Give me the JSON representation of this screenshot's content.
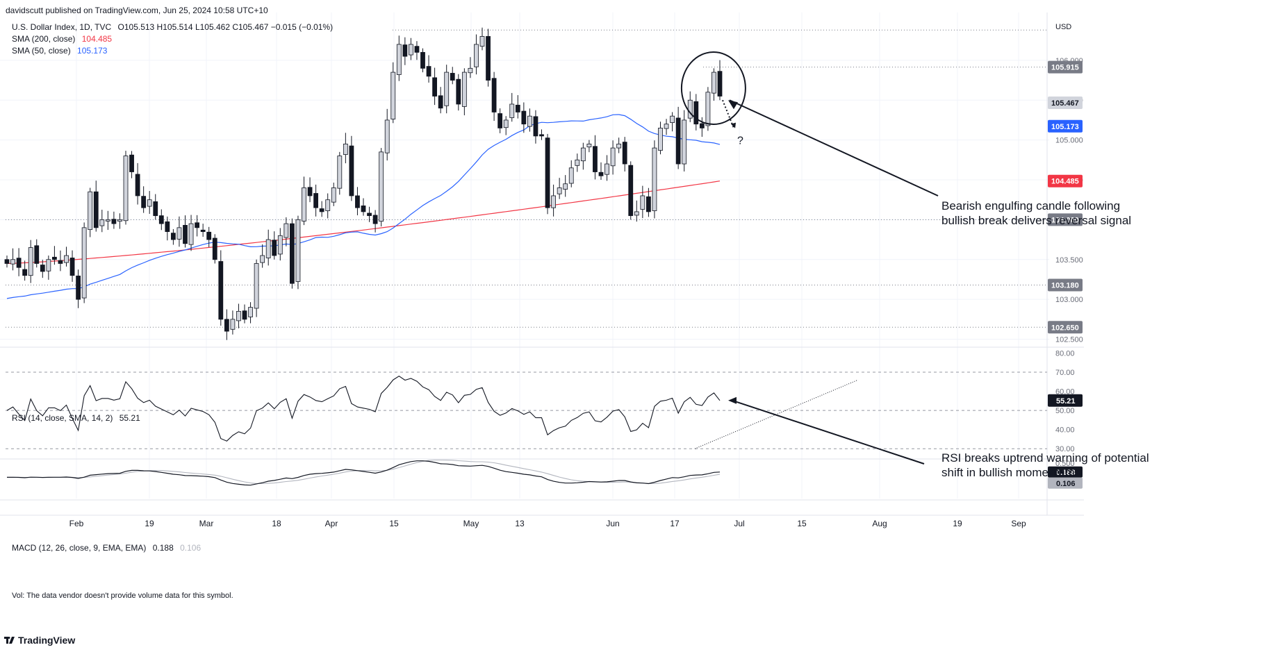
{
  "header": {
    "published": "davidscutt published on TradingView.com, Jun 25, 2024 10:58 UTC+10"
  },
  "legend": {
    "symbol": "U.S. Dollar Index, 1D, TVC",
    "ohlc": "O105.513 H105.514 L105.462 C105.467 −0.015 (−0.01%)",
    "sma200_label": "SMA (200, close)",
    "sma200_value": "104.485",
    "sma50_label": "SMA (50, close)",
    "sma50_value": "105.173",
    "rsi_label": "RSI (14, close, SMA, 14, 2)",
    "rsi_value": "55.21",
    "macd_label": "MACD (12, 26, close, 9, EMA, EMA)",
    "macd_value": "0.188",
    "macd_signal_value": "0.106"
  },
  "vol_note": "Vol: The data vendor doesn't provide volume data for this symbol.",
  "brand": "TradingView",
  "colors": {
    "sma200": "#f23645",
    "sma50": "#2962ff",
    "up_fill": "#d1d4dc",
    "down_fill": "#131722",
    "text": "#131722",
    "grid": "#f0f3fa"
  },
  "annotations": {
    "candle_note_line1": "Bearish engulfing candle following",
    "candle_note_line2": "bullish break delivers reversal signal",
    "rsi_note_line1": "RSI breaks uptrend warning of potential",
    "rsi_note_line2": "shift in bullish momentum",
    "question": "?"
  },
  "chart_data": {
    "type": "candlestick",
    "currency": "USD",
    "x_axis_labels": [
      "Feb",
      "19",
      "Mar",
      "18",
      "Apr",
      "15",
      "May",
      "13",
      "Jun",
      "17",
      "Jul",
      "15",
      "Aug",
      "19",
      "Sep"
    ],
    "price_axis": {
      "ticks": [
        "106.000",
        "105.500",
        "105.000",
        "104.500",
        "104.000",
        "103.500",
        "103.000",
        "102.500"
      ],
      "ylim": [
        102.4,
        106.6
      ]
    },
    "price_badges": [
      {
        "value": "105.915",
        "style": "grey"
      },
      {
        "value": "105.467",
        "style": "light"
      },
      {
        "value": "105.173",
        "style": "blue"
      },
      {
        "value": "104.485",
        "style": "red"
      },
      {
        "value": "104.000",
        "style": "grey"
      },
      {
        "value": "103.180",
        "style": "grey"
      },
      {
        "value": "102.650",
        "style": "grey"
      }
    ],
    "horizontal_levels": [
      106.38,
      105.915,
      104.0,
      103.18,
      102.65
    ],
    "closes": [
      103.45,
      103.5,
      103.4,
      103.3,
      103.65,
      103.45,
      103.35,
      103.5,
      103.5,
      103.45,
      103.55,
      103.3,
      103.0,
      103.9,
      104.35,
      103.9,
      104.0,
      104.0,
      103.95,
      104.0,
      104.8,
      104.6,
      104.3,
      104.15,
      104.25,
      104.05,
      103.95,
      103.85,
      103.75,
      103.9,
      103.7,
      103.95,
      103.9,
      103.85,
      103.75,
      103.5,
      102.75,
      102.6,
      102.75,
      102.85,
      102.75,
      102.9,
      103.45,
      103.55,
      103.75,
      103.55,
      103.8,
      103.95,
      103.2,
      104.0,
      104.4,
      104.3,
      104.15,
      104.1,
      104.25,
      104.4,
      104.8,
      104.95,
      104.3,
      104.15,
      104.1,
      104.05,
      103.95,
      104.85,
      105.25,
      105.85,
      106.2,
      106.05,
      106.2,
      106.1,
      105.9,
      105.8,
      105.55,
      105.4,
      105.85,
      105.75,
      105.45,
      105.85,
      105.9,
      106.2,
      106.3,
      105.75,
      105.35,
      105.15,
      105.25,
      105.45,
      105.35,
      105.2,
      105.3,
      105.05,
      105.05,
      104.15,
      104.3,
      104.4,
      104.45,
      104.65,
      104.75,
      104.9,
      104.95,
      104.6,
      104.55,
      104.7,
      104.9,
      104.95,
      104.7,
      104.05,
      104.1,
      104.3,
      104.1,
      104.9,
      105.15,
      105.2,
      105.3,
      104.7,
      105.25,
      105.5,
      105.2,
      105.15,
      105.6,
      105.85,
      105.55
    ],
    "sma50": "computed from closes (period 50 on prior history)",
    "sma200_last": 104.485,
    "sma50_last": 105.173,
    "rsi": {
      "ticks": [
        "80.00",
        "70.00",
        "60.00",
        "50.00",
        "40.00",
        "30.00"
      ],
      "levels": [
        70,
        50,
        30
      ],
      "ylim": [
        25,
        82
      ],
      "last": 55.21
    },
    "macd": {
      "ticks": [
        "0.500",
        "0.188",
        "0.106"
      ],
      "ylim": [
        -0.75,
        0.6
      ],
      "macd_last": 0.188,
      "signal_last": 0.106
    }
  }
}
